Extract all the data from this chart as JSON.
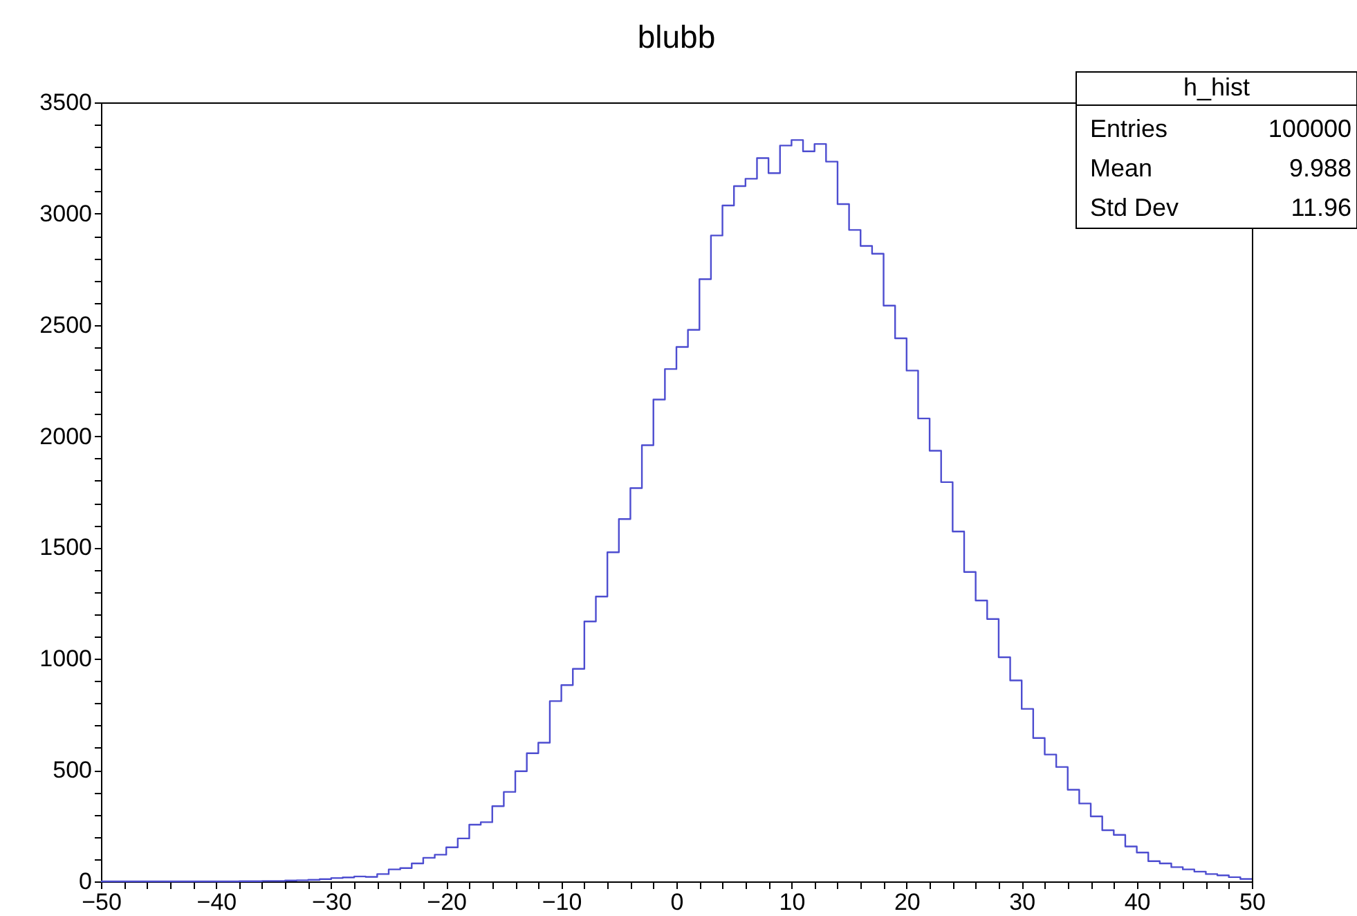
{
  "chart_data": {
    "type": "histogram",
    "title": "blubb",
    "color": "#4d4dd0",
    "bins": [
      -50,
      -49,
      -48,
      -47,
      -46,
      -45,
      -44,
      -43,
      -42,
      -41,
      -40,
      -39,
      -38,
      -37,
      -36,
      -35,
      -34,
      -33,
      -32,
      -31,
      -30,
      -29,
      -28,
      -27,
      -26,
      -25,
      -24,
      -23,
      -22,
      -21,
      -20,
      -19,
      -18,
      -17,
      -16,
      -15,
      -14,
      -13,
      -12,
      -11,
      -10,
      -9,
      -8,
      -7,
      -6,
      -5,
      -4,
      -3,
      -2,
      -1,
      0,
      1,
      2,
      3,
      4,
      5,
      6,
      7,
      8,
      9,
      10,
      11,
      12,
      13,
      14,
      15,
      16,
      17,
      18,
      19,
      20,
      21,
      22,
      23,
      24,
      25,
      26,
      27,
      28,
      29,
      30,
      31,
      32,
      33,
      34,
      35,
      36,
      37,
      38,
      39,
      40,
      41,
      42,
      43,
      44,
      45,
      46,
      47,
      48,
      49,
      50
    ],
    "values": [
      0,
      0,
      0,
      0,
      0,
      0,
      0,
      0,
      0,
      0,
      0,
      0,
      1,
      1,
      2,
      2,
      4,
      5,
      7,
      10,
      15,
      18,
      22,
      20,
      33,
      54,
      60,
      81,
      106,
      120,
      153,
      193,
      255,
      266,
      338,
      402,
      495,
      576,
      623,
      810,
      882,
      955,
      1168,
      1280,
      1479,
      1628,
      1767,
      1960,
      2165,
      2302,
      2401,
      2478,
      2706,
      2902,
      3037,
      3124,
      3157,
      3250,
      3182,
      3306,
      3331,
      3280,
      3313,
      3234,
      3043,
      2927,
      2855,
      2820,
      2587,
      2440,
      2295,
      2080,
      1935,
      1794,
      1572,
      1390,
      1262,
      1179,
      1007,
      903,
      775,
      644,
      570,
      514,
      412,
      350,
      292,
      230,
      209,
      157,
      130,
      91,
      81,
      64,
      54,
      44,
      33,
      27,
      19,
      11
    ],
    "xlim": [
      -50,
      50
    ],
    "xticks": [
      -50,
      {
        "value": -48,
        "label": null
      },
      {
        "value": -46,
        "label": null
      },
      {
        "value": -44,
        "label": null
      },
      {
        "value": -42,
        "label": null
      },
      -40,
      {
        "value": -38,
        "label": null
      },
      {
        "value": -36,
        "label": null
      },
      {
        "value": -34,
        "label": null
      },
      {
        "value": -32,
        "label": null
      },
      -30,
      {
        "value": -28,
        "label": null
      },
      {
        "value": -26,
        "label": null
      },
      {
        "value": -24,
        "label": null
      },
      {
        "value": -22,
        "label": null
      },
      -20,
      {
        "value": -18,
        "label": null
      },
      {
        "value": -16,
        "label": null
      },
      {
        "value": -14,
        "label": null
      },
      {
        "value": -12,
        "label": null
      },
      -10,
      {
        "value": -8,
        "label": null
      },
      {
        "value": -6,
        "label": null
      },
      {
        "value": -4,
        "label": null
      },
      {
        "value": -2,
        "label": null
      },
      0,
      {
        "value": 2,
        "label": null
      },
      {
        "value": 4,
        "label": null
      },
      {
        "value": 6,
        "label": null
      },
      {
        "value": 8,
        "label": null
      },
      10,
      {
        "value": 12,
        "label": null
      },
      {
        "value": 14,
        "label": null
      },
      {
        "value": 16,
        "label": null
      },
      {
        "value": 18,
        "label": null
      },
      20,
      {
        "value": 22,
        "label": null
      },
      {
        "value": 24,
        "label": null
      },
      {
        "value": 26,
        "label": null
      },
      {
        "value": 28,
        "label": null
      },
      30,
      {
        "value": 32,
        "label": null
      },
      {
        "value": 34,
        "label": null
      },
      {
        "value": 36,
        "label": null
      },
      {
        "value": 38,
        "label": null
      },
      40,
      {
        "value": 42,
        "label": null
      },
      {
        "value": 44,
        "label": null
      },
      {
        "value": 46,
        "label": null
      },
      {
        "value": 48,
        "label": null
      },
      50
    ],
    "ylim": [
      0,
      3500
    ],
    "yticks": [
      0,
      {
        "value": 100,
        "label": null
      },
      {
        "value": 200,
        "label": null
      },
      {
        "value": 300,
        "label": null
      },
      {
        "value": 400,
        "label": null
      },
      500,
      {
        "value": 600,
        "label": null
      },
      {
        "value": 700,
        "label": null
      },
      {
        "value": 800,
        "label": null
      },
      {
        "value": 900,
        "label": null
      },
      1000,
      {
        "value": 1100,
        "label": null
      },
      {
        "value": 1200,
        "label": null
      },
      {
        "value": 1300,
        "label": null
      },
      {
        "value": 1400,
        "label": null
      },
      1500,
      {
        "value": 1600,
        "label": null
      },
      {
        "value": 1700,
        "label": null
      },
      {
        "value": 1800,
        "label": null
      },
      {
        "value": 1900,
        "label": null
      },
      2000,
      {
        "value": 2100,
        "label": null
      },
      {
        "value": 2200,
        "label": null
      },
      {
        "value": 2300,
        "label": null
      },
      {
        "value": 2400,
        "label": null
      },
      2500,
      {
        "value": 2600,
        "label": null
      },
      {
        "value": 2700,
        "label": null
      },
      {
        "value": 2800,
        "label": null
      },
      {
        "value": 2900,
        "label": null
      },
      3000,
      {
        "value": 3100,
        "label": null
      },
      {
        "value": 3200,
        "label": null
      },
      {
        "value": 3300,
        "label": null
      },
      {
        "value": 3400,
        "label": null
      },
      3500
    ],
    "annotations": [
      "h_hist",
      "Entries",
      "100000",
      "Mean",
      "9.988",
      "Std Dev",
      "11.96"
    ]
  }
}
